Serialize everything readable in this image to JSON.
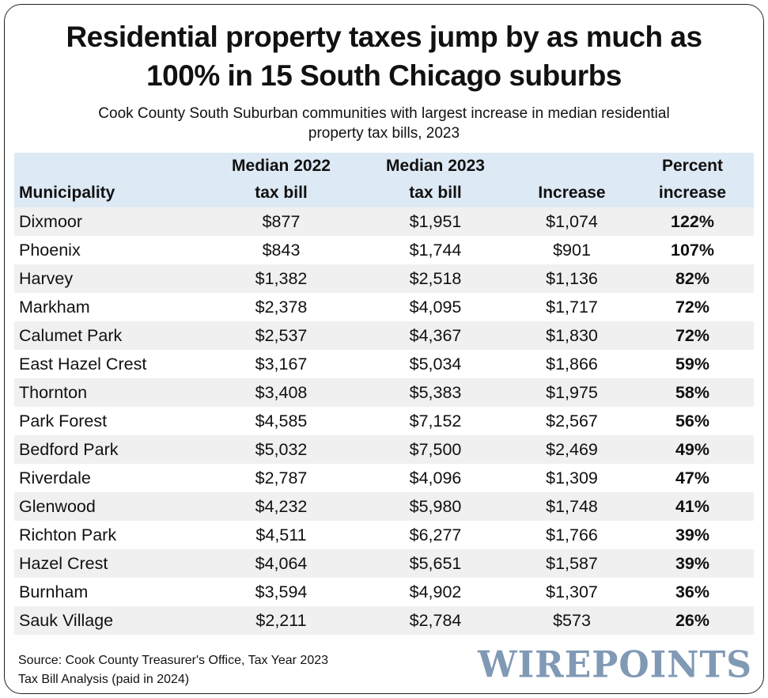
{
  "title_line1": "Residential property taxes jump by as much as",
  "title_line2": "100% in 15 South Chicago suburbs",
  "subtitle_line1": "Cook County South Suburban communities with largest increase in median residential",
  "subtitle_line2": "property tax bills, 2023",
  "table": {
    "headers": [
      {
        "line1": "",
        "line2": "Municipality"
      },
      {
        "line1": "Median 2022",
        "line2": "tax bill"
      },
      {
        "line1": "Median 2023",
        "line2": "tax bill"
      },
      {
        "line1": "",
        "line2": "Increase"
      },
      {
        "line1": "Percent",
        "line2": "increase"
      }
    ],
    "rows": [
      [
        "Dixmoor",
        "$877",
        "$1,951",
        "$1,074",
        "122%"
      ],
      [
        "Phoenix",
        "$843",
        "$1,744",
        "$901",
        "107%"
      ],
      [
        "Harvey",
        "$1,382",
        "$2,518",
        "$1,136",
        "82%"
      ],
      [
        "Markham",
        "$2,378",
        "$4,095",
        "$1,717",
        "72%"
      ],
      [
        "Calumet Park",
        "$2,537",
        "$4,367",
        "$1,830",
        "72%"
      ],
      [
        "East Hazel Crest",
        "$3,167",
        "$5,034",
        "$1,866",
        "59%"
      ],
      [
        "Thornton",
        "$3,408",
        "$5,383",
        "$1,975",
        "58%"
      ],
      [
        "Park Forest",
        "$4,585",
        "$7,152",
        "$2,567",
        "56%"
      ],
      [
        "Bedford Park",
        "$5,032",
        "$7,500",
        "$2,469",
        "49%"
      ],
      [
        "Riverdale",
        "$2,787",
        "$4,096",
        "$1,309",
        "47%"
      ],
      [
        "Glenwood",
        "$4,232",
        "$5,980",
        "$1,748",
        "41%"
      ],
      [
        "Richton Park",
        "$4,511",
        "$6,277",
        "$1,766",
        "39%"
      ],
      [
        "Hazel Crest",
        "$4,064",
        "$5,651",
        "$1,587",
        "39%"
      ],
      [
        "Burnham",
        "$3,594",
        "$4,902",
        "$1,307",
        "36%"
      ],
      [
        "Sauk Village",
        "$2,211",
        "$2,784",
        "$573",
        "26%"
      ]
    ]
  },
  "source_line1": "Source: Cook County Treasurer's Office, Tax Year 2023",
  "source_line2": "Tax Bill Analysis (paid in 2024)",
  "logo_text": "WIREPOINTS",
  "colors": {
    "header_bg": "#dde9f4",
    "stripe_bg": "#f0f0f0",
    "logo": "#8099b5"
  }
}
